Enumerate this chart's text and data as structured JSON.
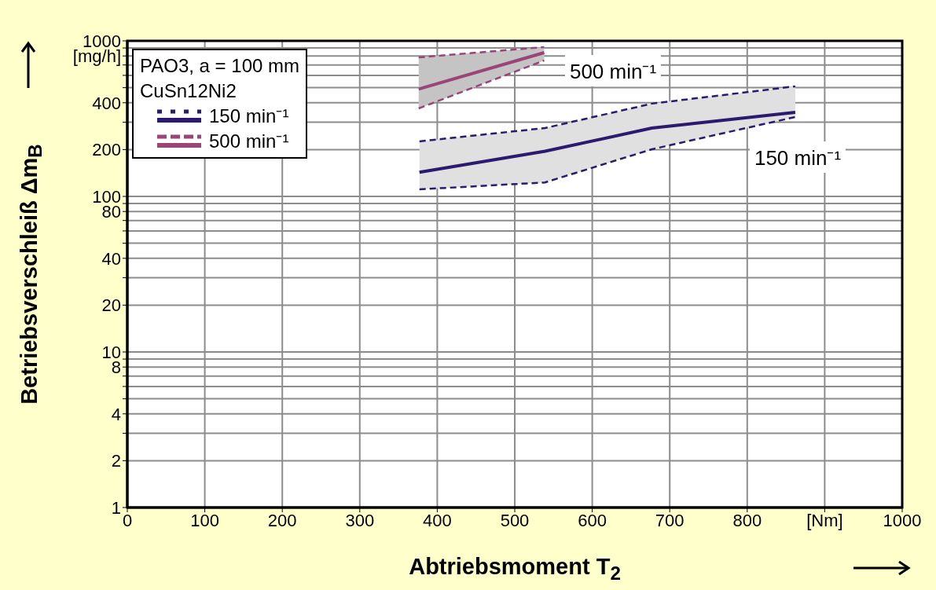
{
  "chart_data": {
    "type": "line",
    "xlabel": "Abtriebsmoment T$_{2}$",
    "ylabel": "Betriebsverschleiß Δm$_{B}$",
    "legend_title": "PAO3, a = 100 mm\nCuSn12Ni2",
    "legend": "top left",
    "log": "y",
    "grid": true,
    "line_style": "solid",
    "marker": "none",
    "xlim": [
      0,
      1000
    ],
    "xticks": [
      0,
      100,
      200,
      300,
      400,
      500,
      600,
      700,
      800,
      {
        "value": 900,
        "label": "[Nm]"
      },
      1000
    ],
    "ylim": [
      1,
      1000
    ],
    "yticks": [
      1,
      2,
      {
        "value": 3,
        "label": null
      },
      4,
      {
        "value": 5,
        "label": null
      },
      {
        "value": 6,
        "label": null
      },
      {
        "value": 7,
        "label": null
      },
      8,
      {
        "value": 9,
        "label": null
      },
      10,
      20,
      {
        "value": 30,
        "label": null
      },
      40,
      {
        "value": 50,
        "label": null
      },
      {
        "value": 60,
        "label": null
      },
      {
        "value": 70,
        "label": null
      },
      80,
      {
        "value": 90,
        "label": null
      },
      100,
      200,
      {
        "value": 300,
        "label": null
      },
      400,
      {
        "value": 500,
        "label": null
      },
      {
        "value": 600,
        "label": null
      },
      {
        "value": 700,
        "label": null
      },
      {
        "value": 800,
        "label": "[mg/h]"
      },
      {
        "value": 900,
        "label": null
      },
      1000
    ],
    "series": [
      {
        "name": "150 min⁻¹",
        "color": "#2b1a6e",
        "x": [
          377,
          539,
          677,
          862
        ],
        "values": [
          143,
          195,
          275,
          347
        ],
        "lower": [
          111,
          123,
          201,
          324
        ],
        "upper": [
          226,
          275,
          395,
          510
        ]
      },
      {
        "name": "500 min⁻¹",
        "color": "#9b4477",
        "x": [
          376,
          538
        ],
        "values": [
          490,
          840
        ],
        "lower": [
          368,
          748
        ],
        "upper": [
          783,
          912
        ]
      },
      {
        "type": "line",
        "line_style": "dashed",
        "color": "#2b1a6e",
        "x": [
          377,
          539,
          677,
          862
        ],
        "values": [
          111,
          123,
          201,
          324
        ]
      },
      {
        "type": "line",
        "line_style": "dashed",
        "color": "#2b1a6e",
        "x": [
          377,
          539,
          677,
          862
        ],
        "values": [
          226,
          275,
          395,
          510
        ]
      },
      {
        "type": "line",
        "line_style": "dashed",
        "color": "#9b4477",
        "x": [
          376,
          538
        ],
        "values": [
          368,
          748
        ]
      },
      {
        "type": "line",
        "line_style": "dashed",
        "color": "#9b4477",
        "x": [
          376,
          538
        ],
        "values": [
          783,
          912
        ]
      }
    ],
    "annotations": [
      "500 min⁻¹",
      "150 min⁻¹"
    ]
  }
}
